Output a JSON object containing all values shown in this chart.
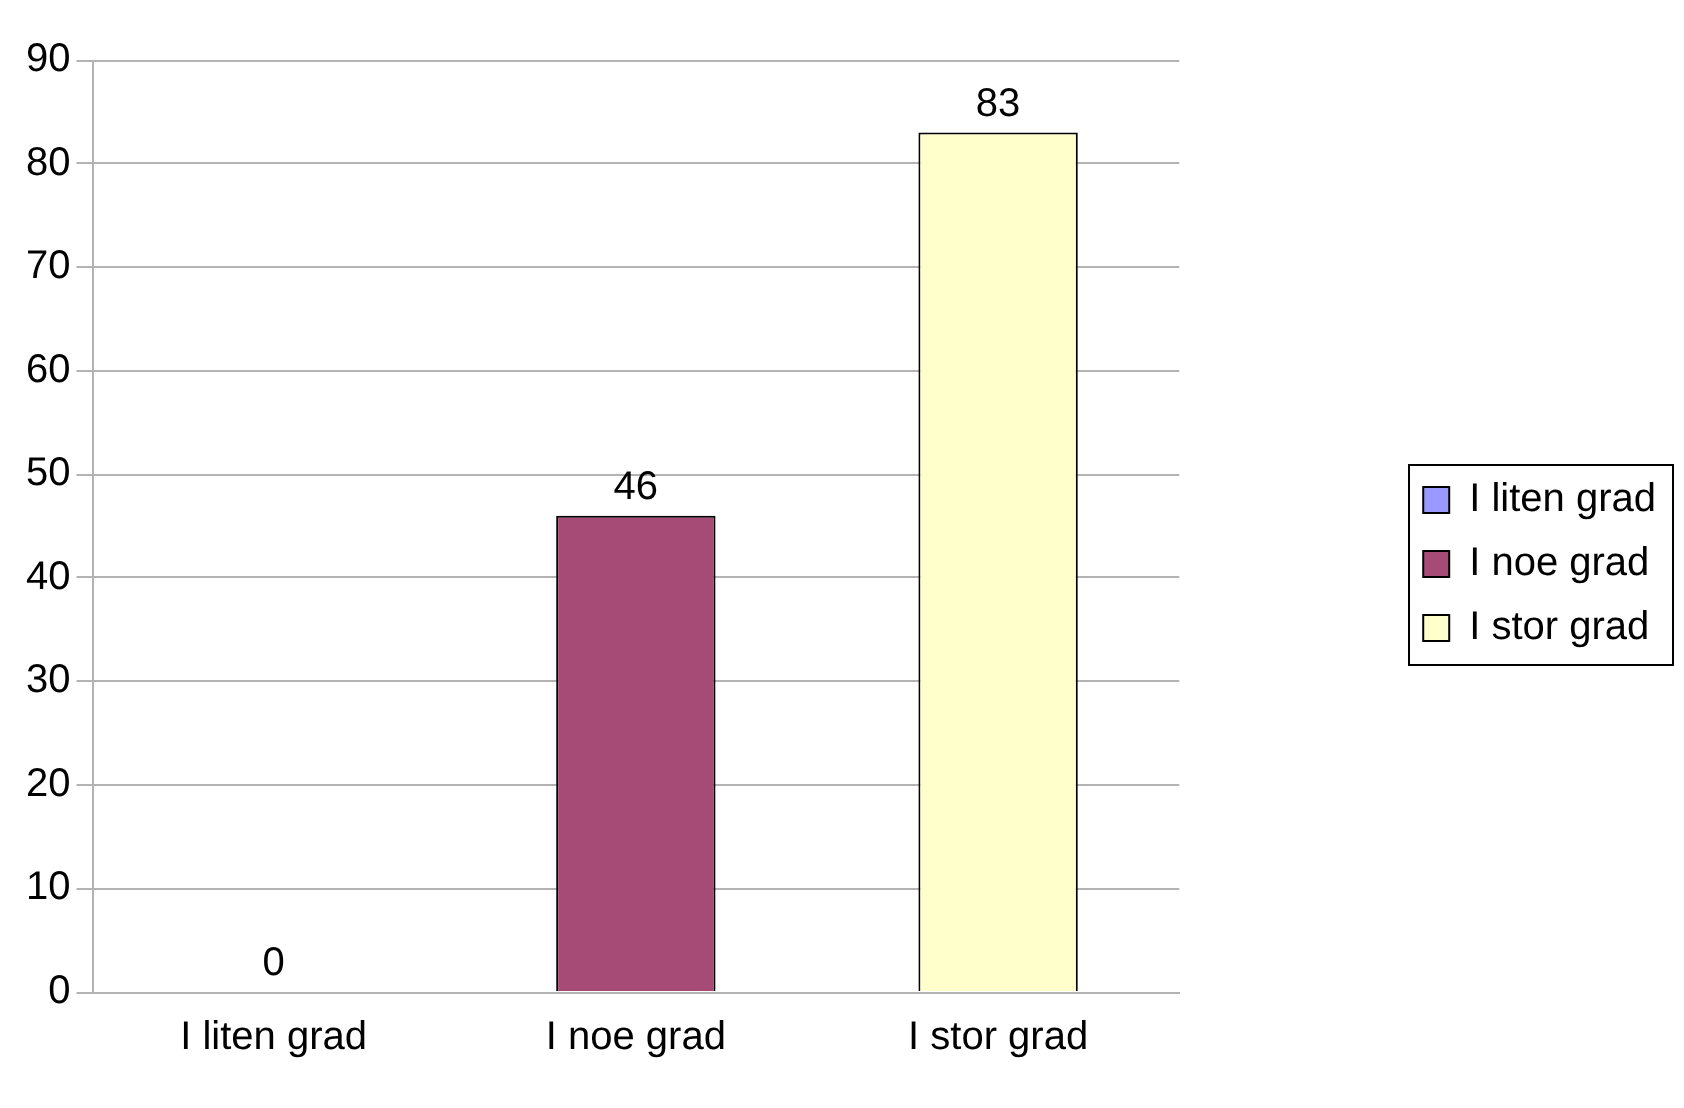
{
  "chart_data": {
    "type": "bar",
    "categories": [
      "I liten grad",
      "I noe grad",
      "I stor grad"
    ],
    "series": [
      {
        "name": "I liten grad",
        "color": "#9999ff",
        "values": [
          0,
          null,
          null
        ]
      },
      {
        "name": "I noe grad",
        "color": "#a64a76",
        "values": [
          null,
          46,
          null
        ]
      },
      {
        "name": "I stor grad",
        "color": "#ffffcc",
        "values": [
          null,
          null,
          83
        ]
      }
    ],
    "ylim": [
      0,
      90
    ],
    "yticks": [
      0,
      10,
      20,
      30,
      40,
      50,
      60,
      70,
      80,
      90
    ],
    "grid": "y",
    "legend": "right",
    "data_labels": true
  }
}
